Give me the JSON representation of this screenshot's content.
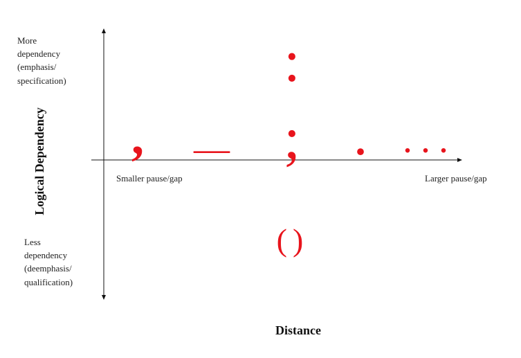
{
  "axes": {
    "y_label": "Logical Dependency",
    "x_label": "Distance",
    "top_label": [
      "More",
      "dependency",
      "(emphasis/",
      "specification)"
    ],
    "bottom_label": [
      "Less",
      "dependency",
      "(deemphasis/",
      "qualification)"
    ],
    "left_label": "Smaller pause/gap",
    "right_label": "Larger pause/gap"
  },
  "marks": [
    {
      "label": ","
    },
    {
      "label": "—"
    },
    {
      "label": ";"
    },
    {
      "label": ":"
    },
    {
      "label": "."
    },
    {
      "label": "..."
    },
    {
      "label": "()"
    }
  ]
}
